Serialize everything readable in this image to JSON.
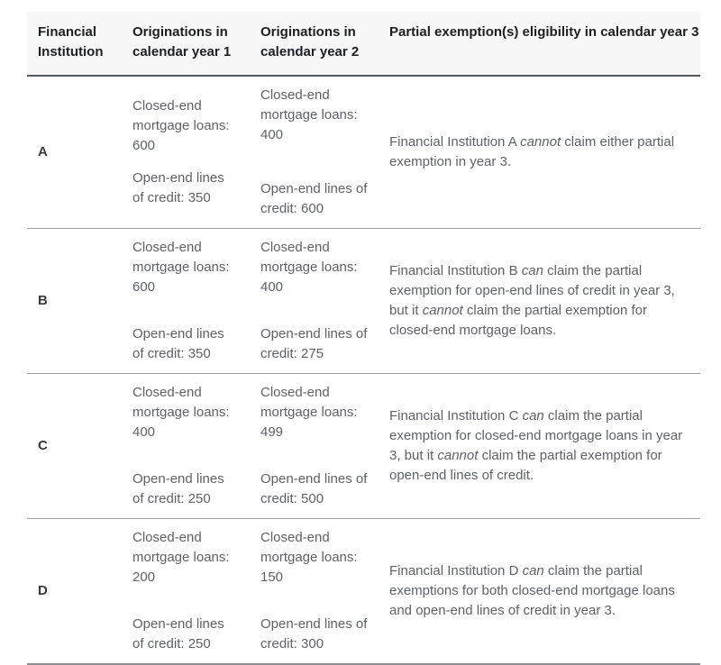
{
  "colors": {
    "header_bg": "#f7f7f7",
    "header_text": "#1c2023",
    "body_text": "#5e6166",
    "institution_text": "#36393d",
    "header_border": "#54575b",
    "row_border": "#9b9ea2",
    "bottom_border": "#8b8e92",
    "page_bg": "#ffffff"
  },
  "table": {
    "column_headers": [
      "Financial Institution",
      "Originations in calendar year 1",
      "Originations in calendar year 2",
      "Partial exemption(s) eligibility in calendar year 3"
    ],
    "rows": [
      {
        "institution": "A",
        "year1": {
          "closed_end": "Closed-end mortgage loans: 600",
          "open_end": "Open-end lines of credit: 350"
        },
        "year2": {
          "closed_end": "Closed-end mortgage loans: 400",
          "open_end": "Open-end lines of credit: 600"
        },
        "eligibility_segments": [
          {
            "text": "Financial Institution A ",
            "italic": false
          },
          {
            "text": "cannot",
            "italic": true
          },
          {
            "text": " claim either partial exemption in year 3.",
            "italic": false
          }
        ]
      },
      {
        "institution": "B",
        "year1": {
          "closed_end": "Closed-end mortgage loans: 600",
          "open_end": "Open-end lines of credit: 350"
        },
        "year2": {
          "closed_end": "Closed-end mortgage loans: 400",
          "open_end": "Open-end lines of credit: 275"
        },
        "eligibility_segments": [
          {
            "text": "Financial Institution B ",
            "italic": false
          },
          {
            "text": "can",
            "italic": true
          },
          {
            "text": " claim the partial exemption for open-end lines of credit in year 3, but it ",
            "italic": false
          },
          {
            "text": "cannot",
            "italic": true
          },
          {
            "text": " claim the partial exemption for closed-end mortgage loans.",
            "italic": false
          }
        ]
      },
      {
        "institution": "C",
        "year1": {
          "closed_end": "Closed-end mortgage loans: 400",
          "open_end": "Open-end lines of credit: 250"
        },
        "year2": {
          "closed_end": "Closed-end mortgage loans: 499",
          "open_end": "Open-end lines of credit: 500"
        },
        "eligibility_segments": [
          {
            "text": "Financial Institution C ",
            "italic": false
          },
          {
            "text": "can",
            "italic": true
          },
          {
            "text": " claim the partial exemption for closed-end mortgage loans in year 3, but it ",
            "italic": false
          },
          {
            "text": "cannot",
            "italic": true
          },
          {
            "text": " claim the partial exemption for open-end lines of credit.",
            "italic": false
          }
        ]
      },
      {
        "institution": "D",
        "year1": {
          "closed_end": "Closed-end mortgage loans: 200",
          "open_end": "Open-end lines of credit: 250"
        },
        "year2": {
          "closed_end": "Closed-end mortgage loans: 150",
          "open_end": "Open-end lines of credit: 300"
        },
        "eligibility_segments": [
          {
            "text": "Financial Institution D ",
            "italic": false
          },
          {
            "text": "can",
            "italic": true
          },
          {
            "text": " claim the partial exemptions for both closed-end mortgage loans and open-end lines of credit in year 3.",
            "italic": false
          }
        ]
      }
    ]
  }
}
